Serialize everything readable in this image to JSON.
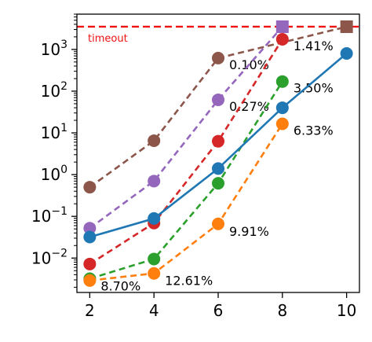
{
  "chart_data": {
    "type": "line",
    "x": [
      2,
      4,
      6,
      8,
      10
    ],
    "xlim": [
      1.6,
      10.4
    ],
    "yscale": "log",
    "ylim": [
      0.0015,
      7000
    ],
    "x_ticks": [
      2,
      4,
      6,
      8,
      10
    ],
    "y_ticks": [
      {
        "value": 0.01,
        "base": "10",
        "exp": "−2"
      },
      {
        "value": 0.1,
        "base": "10",
        "exp": "−1"
      },
      {
        "value": 1,
        "base": "10",
        "exp": "0"
      },
      {
        "value": 10,
        "base": "10",
        "exp": "1"
      },
      {
        "value": 100,
        "base": "10",
        "exp": "2"
      },
      {
        "value": 1000,
        "base": "10",
        "exp": "3"
      }
    ],
    "grid": false,
    "legend": "none",
    "timeout": {
      "value": 3500,
      "label": "timeout",
      "color": "#ee1111"
    },
    "series": [
      {
        "color": "#8c564b",
        "style": "dashed",
        "values": [
          0.5,
          6.5,
          620,
          null,
          null
        ],
        "timeout_x": 10,
        "annotation": {
          "x": 6,
          "text": "0.10%"
        }
      },
      {
        "color": "#9467bd",
        "style": "dashed",
        "values": [
          0.052,
          0.7,
          62,
          null,
          null
        ],
        "timeout_x": 8,
        "annotation": {
          "x": 6,
          "text": "0.27%"
        }
      },
      {
        "color": "#d62728",
        "style": "dashed",
        "values": [
          0.0072,
          0.069,
          6.3,
          1750,
          null
        ],
        "annotation": {
          "x": 8,
          "text": "1.41%"
        }
      },
      {
        "color": "#2ca02c",
        "style": "dashed",
        "values": [
          0.0032,
          0.0095,
          0.62,
          170,
          null
        ],
        "annotation": {
          "x": 8,
          "text": "3.50%"
        }
      },
      {
        "color": "#ff7f0e",
        "style": "dashed",
        "values": [
          0.0029,
          0.0043,
          0.066,
          16.5,
          null
        ],
        "annotation": {
          "x": 8,
          "text": "6.33%"
        }
      },
      {
        "color": "#1f77b4",
        "style": "solid",
        "values": [
          0.032,
          0.089,
          1.4,
          40,
          800
        ]
      }
    ],
    "annotations": [
      {
        "text": "8.70%",
        "x": 2,
        "y": 0.0032
      },
      {
        "text": "12.61%",
        "x": 4,
        "y": 0.0043
      },
      {
        "text": "9.91%",
        "x": 6,
        "y": 0.066
      }
    ]
  }
}
